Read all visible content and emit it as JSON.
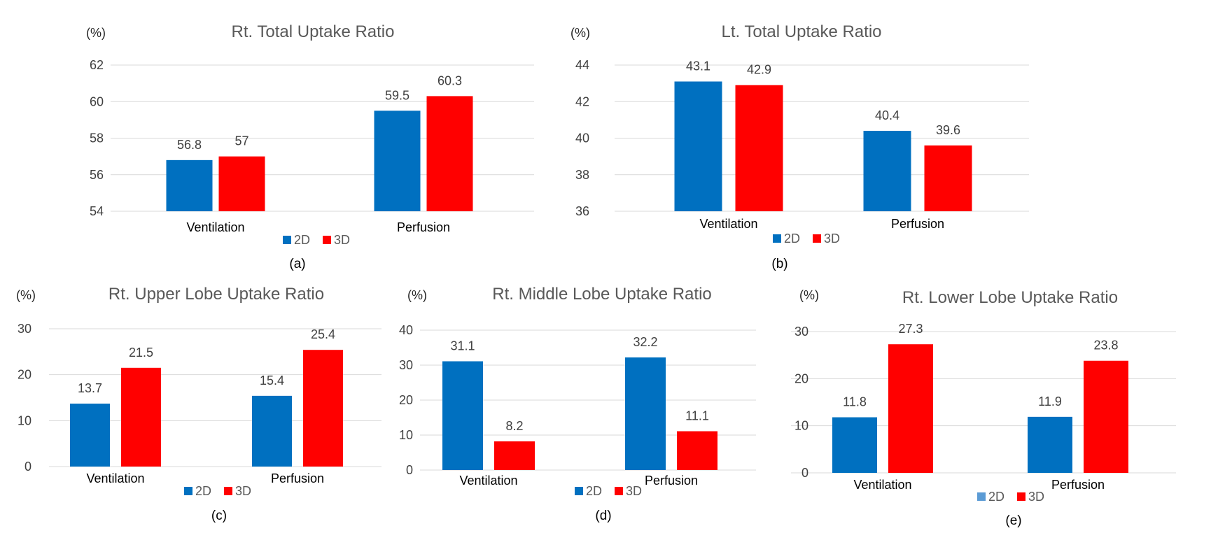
{
  "colors": {
    "d2": "#0070C0",
    "d3": "#FF0000",
    "d2_legend_e": "#5B9BD5",
    "grid": "#D9D9D9"
  },
  "chart_data": [
    {
      "type": "bar",
      "id": "a",
      "caption": "(a)",
      "title": "Rt. Total Uptake Ratio",
      "ylabel": "(%)",
      "categories": [
        "Ventilation",
        "Perfusion"
      ],
      "series": [
        {
          "name": "2D",
          "values": [
            56.8,
            59.5
          ]
        },
        {
          "name": "3D",
          "values": [
            57,
            60.3
          ]
        }
      ],
      "data_labels": [
        [
          "56.8",
          "59.5"
        ],
        [
          "57",
          "60.3"
        ]
      ],
      "ylim": [
        54,
        62
      ],
      "yticks": [
        54,
        56,
        58,
        60,
        62
      ],
      "grid": true,
      "legend": "bottom"
    },
    {
      "type": "bar",
      "id": "b",
      "caption": "(b)",
      "title": "Lt. Total Uptake Ratio",
      "ylabel": "(%)",
      "categories": [
        "Ventilation",
        "Perfusion"
      ],
      "series": [
        {
          "name": "2D",
          "values": [
            43.1,
            40.4
          ]
        },
        {
          "name": "3D",
          "values": [
            42.9,
            39.6
          ]
        }
      ],
      "data_labels": [
        [
          "43.1",
          "40.4"
        ],
        [
          "42.9",
          "39.6"
        ]
      ],
      "ylim": [
        36,
        44
      ],
      "yticks": [
        36,
        38,
        40,
        42,
        44
      ],
      "grid": true,
      "legend": "bottom"
    },
    {
      "type": "bar",
      "id": "c",
      "caption": "(c)",
      "title": "Rt. Upper Lobe Uptake Ratio",
      "ylabel": "(%)",
      "categories": [
        "Ventilation",
        "Perfusion"
      ],
      "series": [
        {
          "name": "2D",
          "values": [
            13.7,
            15.4
          ]
        },
        {
          "name": "3D",
          "values": [
            21.5,
            25.4
          ]
        }
      ],
      "data_labels": [
        [
          "13.7",
          "15.4"
        ],
        [
          "21.5",
          "25.4"
        ]
      ],
      "ylim": [
        0,
        30
      ],
      "yticks": [
        0,
        10,
        20,
        30
      ],
      "grid": true,
      "legend": "bottom"
    },
    {
      "type": "bar",
      "id": "d",
      "caption": "(d)",
      "title": "Rt. Middle Lobe Uptake Ratio",
      "ylabel": "(%)",
      "categories": [
        "Ventilation",
        "Perfusion"
      ],
      "series": [
        {
          "name": "2D",
          "values": [
            31.1,
            32.2
          ]
        },
        {
          "name": "3D",
          "values": [
            8.2,
            11.1
          ]
        }
      ],
      "data_labels": [
        [
          "31.1",
          "32.2"
        ],
        [
          "8.2",
          "11.1"
        ]
      ],
      "ylim": [
        0,
        40
      ],
      "yticks": [
        0,
        10,
        20,
        30,
        40
      ],
      "grid": true,
      "legend": "bottom"
    },
    {
      "type": "bar",
      "id": "e",
      "caption": "(e)",
      "title": "Rt. Lower Lobe Uptake Ratio",
      "ylabel": "(%)",
      "categories": [
        "Ventilation",
        "Perfusion"
      ],
      "series": [
        {
          "name": "2D",
          "values": [
            11.8,
            11.9
          ]
        },
        {
          "name": "3D",
          "values": [
            27.3,
            23.8
          ]
        }
      ],
      "data_labels": [
        [
          "11.8",
          "11.9"
        ],
        [
          "27.3",
          "23.8"
        ]
      ],
      "ylim": [
        0,
        30
      ],
      "yticks": [
        0,
        10,
        20,
        30
      ],
      "grid": true,
      "legend": "bottom"
    }
  ]
}
